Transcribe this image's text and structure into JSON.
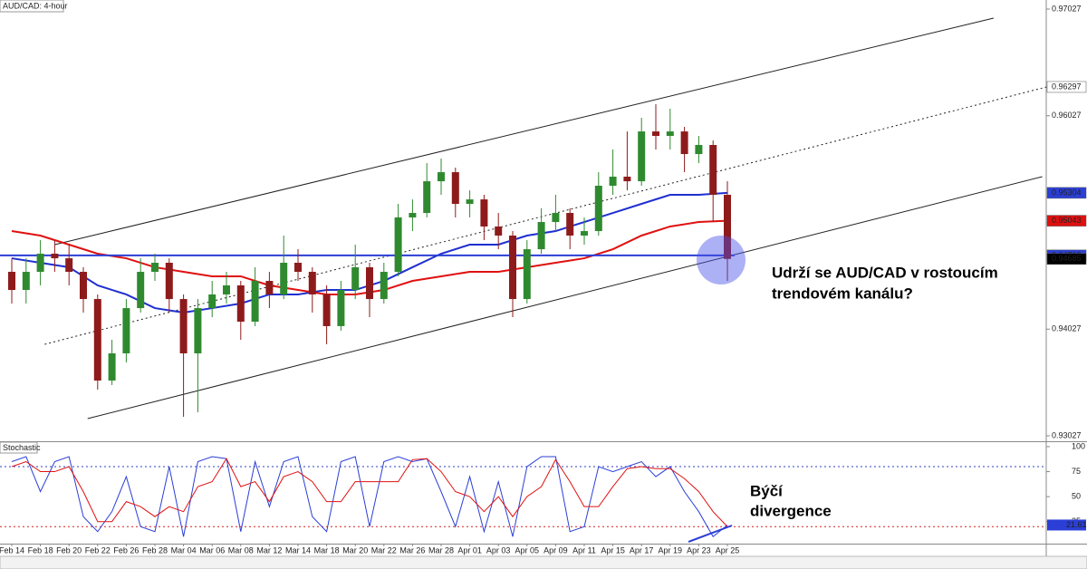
{
  "chart_data": {
    "type": "candlestick",
    "title": "AUD/CAD: 4-hour",
    "x_labels": [
      "Feb 14",
      "Feb 18",
      "Feb 20",
      "Feb 22",
      "Feb 26",
      "Feb 28",
      "Mar 04",
      "Mar 06",
      "Mar 08",
      "Mar 12",
      "Mar 14",
      "Mar 18",
      "Mar 20",
      "Mar 22",
      "Mar 26",
      "Mar 28",
      "Apr 01",
      "Apr 03",
      "Apr 05",
      "Apr 09",
      "Apr 11",
      "Apr 15",
      "Apr 17",
      "Apr 19",
      "Apr 23",
      "Apr 25"
    ],
    "candles": {
      "open": [
        0.94564,
        0.94394,
        0.94564,
        0.94734,
        0.94691,
        0.94564,
        0.94309,
        0.93545,
        0.938,
        0.94224,
        0.94564,
        0.94649,
        0.94309,
        0.938,
        0.94224,
        0.94352,
        0.94437,
        0.94097,
        0.94479,
        0.94352,
        0.94649,
        0.94564,
        0.94352,
        0.94055,
        0.94394,
        0.94607,
        0.94309,
        0.94564,
        0.95074,
        0.95116,
        0.95413,
        0.95498,
        0.95201,
        0.95243,
        0.94989,
        0.94904,
        0.94309,
        0.94776,
        0.95031,
        0.95116,
        0.94904,
        0.94946,
        0.95371,
        0.95456,
        0.95413,
        0.9588,
        0.95838,
        0.9588,
        0.95668,
        0.95753,
        0.95286
      ],
      "high": [
        0.94691,
        0.94691,
        0.94861,
        0.94861,
        0.94819,
        0.94607,
        0.94352,
        0.93927,
        0.94309,
        0.94691,
        0.94734,
        0.94691,
        0.94352,
        0.94309,
        0.94479,
        0.94564,
        0.94479,
        0.94607,
        0.94564,
        0.94904,
        0.94776,
        0.94607,
        0.94437,
        0.94479,
        0.94819,
        0.94649,
        0.94649,
        0.95201,
        0.95243,
        0.95583,
        0.95626,
        0.95541,
        0.95328,
        0.95286,
        0.95116,
        0.94946,
        0.94861,
        0.95159,
        0.95286,
        0.95159,
        0.95074,
        0.95498,
        0.95711,
        0.9588,
        0.96008,
        0.96135,
        0.96093,
        0.95923,
        0.95838,
        0.95795,
        0.95413
      ],
      "low": [
        0.94267,
        0.94267,
        0.94437,
        0.94564,
        0.94437,
        0.94182,
        0.9346,
        0.93503,
        0.93715,
        0.94182,
        0.94479,
        0.94182,
        0.93205,
        0.93248,
        0.94139,
        0.94267,
        0.93927,
        0.94055,
        0.94224,
        0.94309,
        0.94479,
        0.94182,
        0.93885,
        0.94012,
        0.94309,
        0.94139,
        0.94267,
        0.94522,
        0.94946,
        0.95074,
        0.95286,
        0.95074,
        0.95074,
        0.94861,
        0.94776,
        0.94139,
        0.94267,
        0.94734,
        0.94946,
        0.94776,
        0.94819,
        0.94904,
        0.95286,
        0.95328,
        0.95371,
        0.95711,
        0.95711,
        0.95498,
        0.95583,
        0.95031,
        0.94479
      ],
      "close": [
        0.94394,
        0.94564,
        0.94734,
        0.94691,
        0.94564,
        0.94309,
        0.93545,
        0.938,
        0.94224,
        0.94564,
        0.94649,
        0.94309,
        0.938,
        0.94224,
        0.94352,
        0.94437,
        0.94097,
        0.94479,
        0.94352,
        0.94649,
        0.94564,
        0.94352,
        0.94055,
        0.94394,
        0.94607,
        0.94309,
        0.94564,
        0.95074,
        0.95116,
        0.95413,
        0.95498,
        0.95201,
        0.95243,
        0.94989,
        0.94904,
        0.94309,
        0.94776,
        0.95031,
        0.95116,
        0.94904,
        0.94946,
        0.95371,
        0.95456,
        0.95413,
        0.9588,
        0.95838,
        0.9588,
        0.95668,
        0.95753,
        0.95286,
        0.94685
      ]
    },
    "up_color": "#2f8a2f",
    "down_color": "#8e1b1b",
    "ylim": [
      0.92976,
      0.97112
    ],
    "yticks": [
      0.93027,
      0.94027,
      0.95027,
      0.96027,
      0.97027
    ],
    "moving_averages": [
      {
        "color": "#1f2fd0",
        "values": [
          0.94691,
          0.94649,
          0.94607,
          0.94437,
          0.94352,
          0.94224,
          0.94182,
          0.94224,
          0.94267,
          0.94352,
          0.94352,
          0.94394,
          0.94394,
          0.94479,
          0.94607,
          0.94734,
          0.94819,
          0.94819,
          0.94904,
          0.94946,
          0.95031,
          0.95116,
          0.95201,
          0.95286,
          0.95286,
          0.95304
        ]
      },
      {
        "color": "#e01010",
        "values": [
          0.94946,
          0.94904,
          0.94819,
          0.94734,
          0.94691,
          0.94607,
          0.94564,
          0.94522,
          0.94522,
          0.94437,
          0.94394,
          0.94352,
          0.94352,
          0.94394,
          0.94479,
          0.94522,
          0.94564,
          0.94564,
          0.94607,
          0.94649,
          0.94691,
          0.94776,
          0.94904,
          0.94989,
          0.95031,
          0.95043
        ]
      }
    ],
    "trendlines": [
      {
        "from": [
          3,
          0.94819
        ],
        "to": [
          68.6,
          0.96942
        ],
        "style": "solid"
      },
      {
        "from": [
          2.3,
          0.93885
        ],
        "to": [
          72.3,
          0.96297
        ],
        "style": "dotted"
      },
      {
        "from": [
          5.3,
          0.93188
        ],
        "to": [
          72,
          0.95456
        ],
        "style": "solid"
      }
    ],
    "level": {
      "value": 0.94718,
      "color": "#2b3fd6"
    },
    "price_tags": [
      {
        "value": 0.96297,
        "color": "#ffffff",
        "text_color": "#000000"
      },
      {
        "value": 0.95304,
        "color": "#2b3fd6",
        "text_color": "#ffffff"
      },
      {
        "value": 0.95043,
        "color": "#e01010",
        "text_color": "#ffffff"
      },
      {
        "value": 0.94718,
        "color": "#2b3fd6",
        "text_color": "#ffffff"
      },
      {
        "value": 0.94685,
        "color": "#000000",
        "text_color": "#ffffff"
      }
    ],
    "annotation": [
      "Udrží se AUD/CAD v rostoucím",
      "trendovém kanálu?"
    ],
    "stochastic": {
      "type": "line",
      "title": "Stochastic",
      "series": [
        {
          "color": "#2b3fd6",
          "values": [
            85,
            90,
            55,
            85,
            90,
            30,
            15,
            35,
            70,
            20,
            15,
            80,
            10,
            85,
            90,
            88,
            15,
            85,
            40,
            85,
            90,
            30,
            15,
            85,
            90,
            20,
            85,
            90,
            85,
            88,
            55,
            20,
            70,
            15,
            65,
            10,
            80,
            90,
            90,
            15,
            20,
            80,
            75,
            80,
            85,
            70,
            80,
            55,
            35,
            10,
            21.61
          ]
        },
        {
          "color": "#e01010",
          "values": [
            80,
            85,
            75,
            75,
            80,
            55,
            25,
            25,
            45,
            40,
            30,
            40,
            35,
            60,
            65,
            88,
            60,
            65,
            45,
            70,
            75,
            65,
            45,
            45,
            65,
            65,
            65,
            65,
            87,
            88,
            75,
            55,
            50,
            35,
            50,
            30,
            50,
            60,
            87,
            65,
            40,
            40,
            60,
            78,
            80,
            78,
            78,
            68,
            55,
            35,
            20
          ]
        }
      ],
      "ylim": [
        3,
        104.5
      ],
      "yticks": [
        25,
        50,
        75,
        100
      ],
      "levels": [
        {
          "value": 80,
          "color": "#3040c0"
        },
        {
          "value": 20,
          "color": "#d02020"
        }
      ],
      "tag": {
        "value": 21.61,
        "color": "#2b3fd6",
        "text_color": "#ffffff"
      },
      "annotation": [
        "Býčí",
        "divergence"
      ]
    }
  }
}
